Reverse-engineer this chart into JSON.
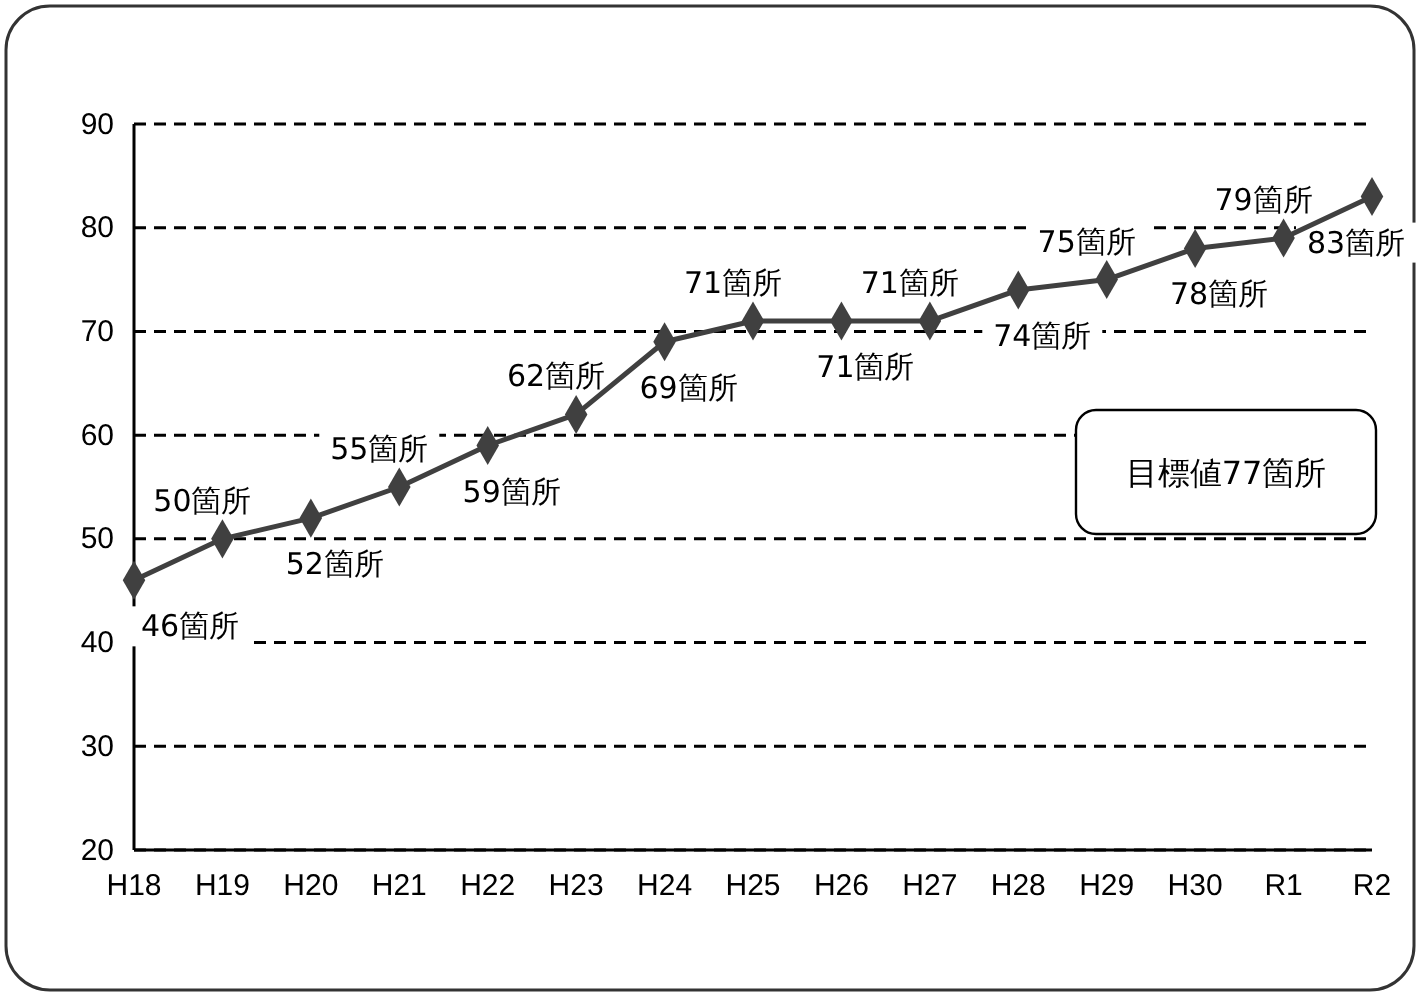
{
  "chart_data": {
    "type": "line",
    "categories": [
      "H18",
      "H19",
      "H20",
      "H21",
      "H22",
      "H23",
      "H24",
      "H25",
      "H26",
      "H27",
      "H28",
      "H29",
      "H30",
      "R1",
      "R2"
    ],
    "series": [
      {
        "color": "#404040",
        "values": [
          46,
          50,
          52,
          55,
          59,
          62,
          69,
          71,
          71,
          71,
          74,
          75,
          78,
          79,
          83
        ],
        "value_labels": [
          "46箇所",
          "50箇所",
          "52箇所",
          "55箇所",
          "59箇所",
          "62箇所",
          "69箇所",
          "71箇所",
          "71箇所",
          "71箇所",
          "74箇所",
          "75箇所",
          "78箇所",
          "79箇所",
          "83箇所"
        ]
      }
    ],
    "ylim": [
      20,
      90
    ],
    "yticks": [
      20,
      30,
      40,
      50,
      60,
      70,
      80,
      90
    ],
    "grid": "y",
    "marker": "diamond",
    "line_style": "solid",
    "annotations": [
      "目標値77箇所"
    ]
  }
}
